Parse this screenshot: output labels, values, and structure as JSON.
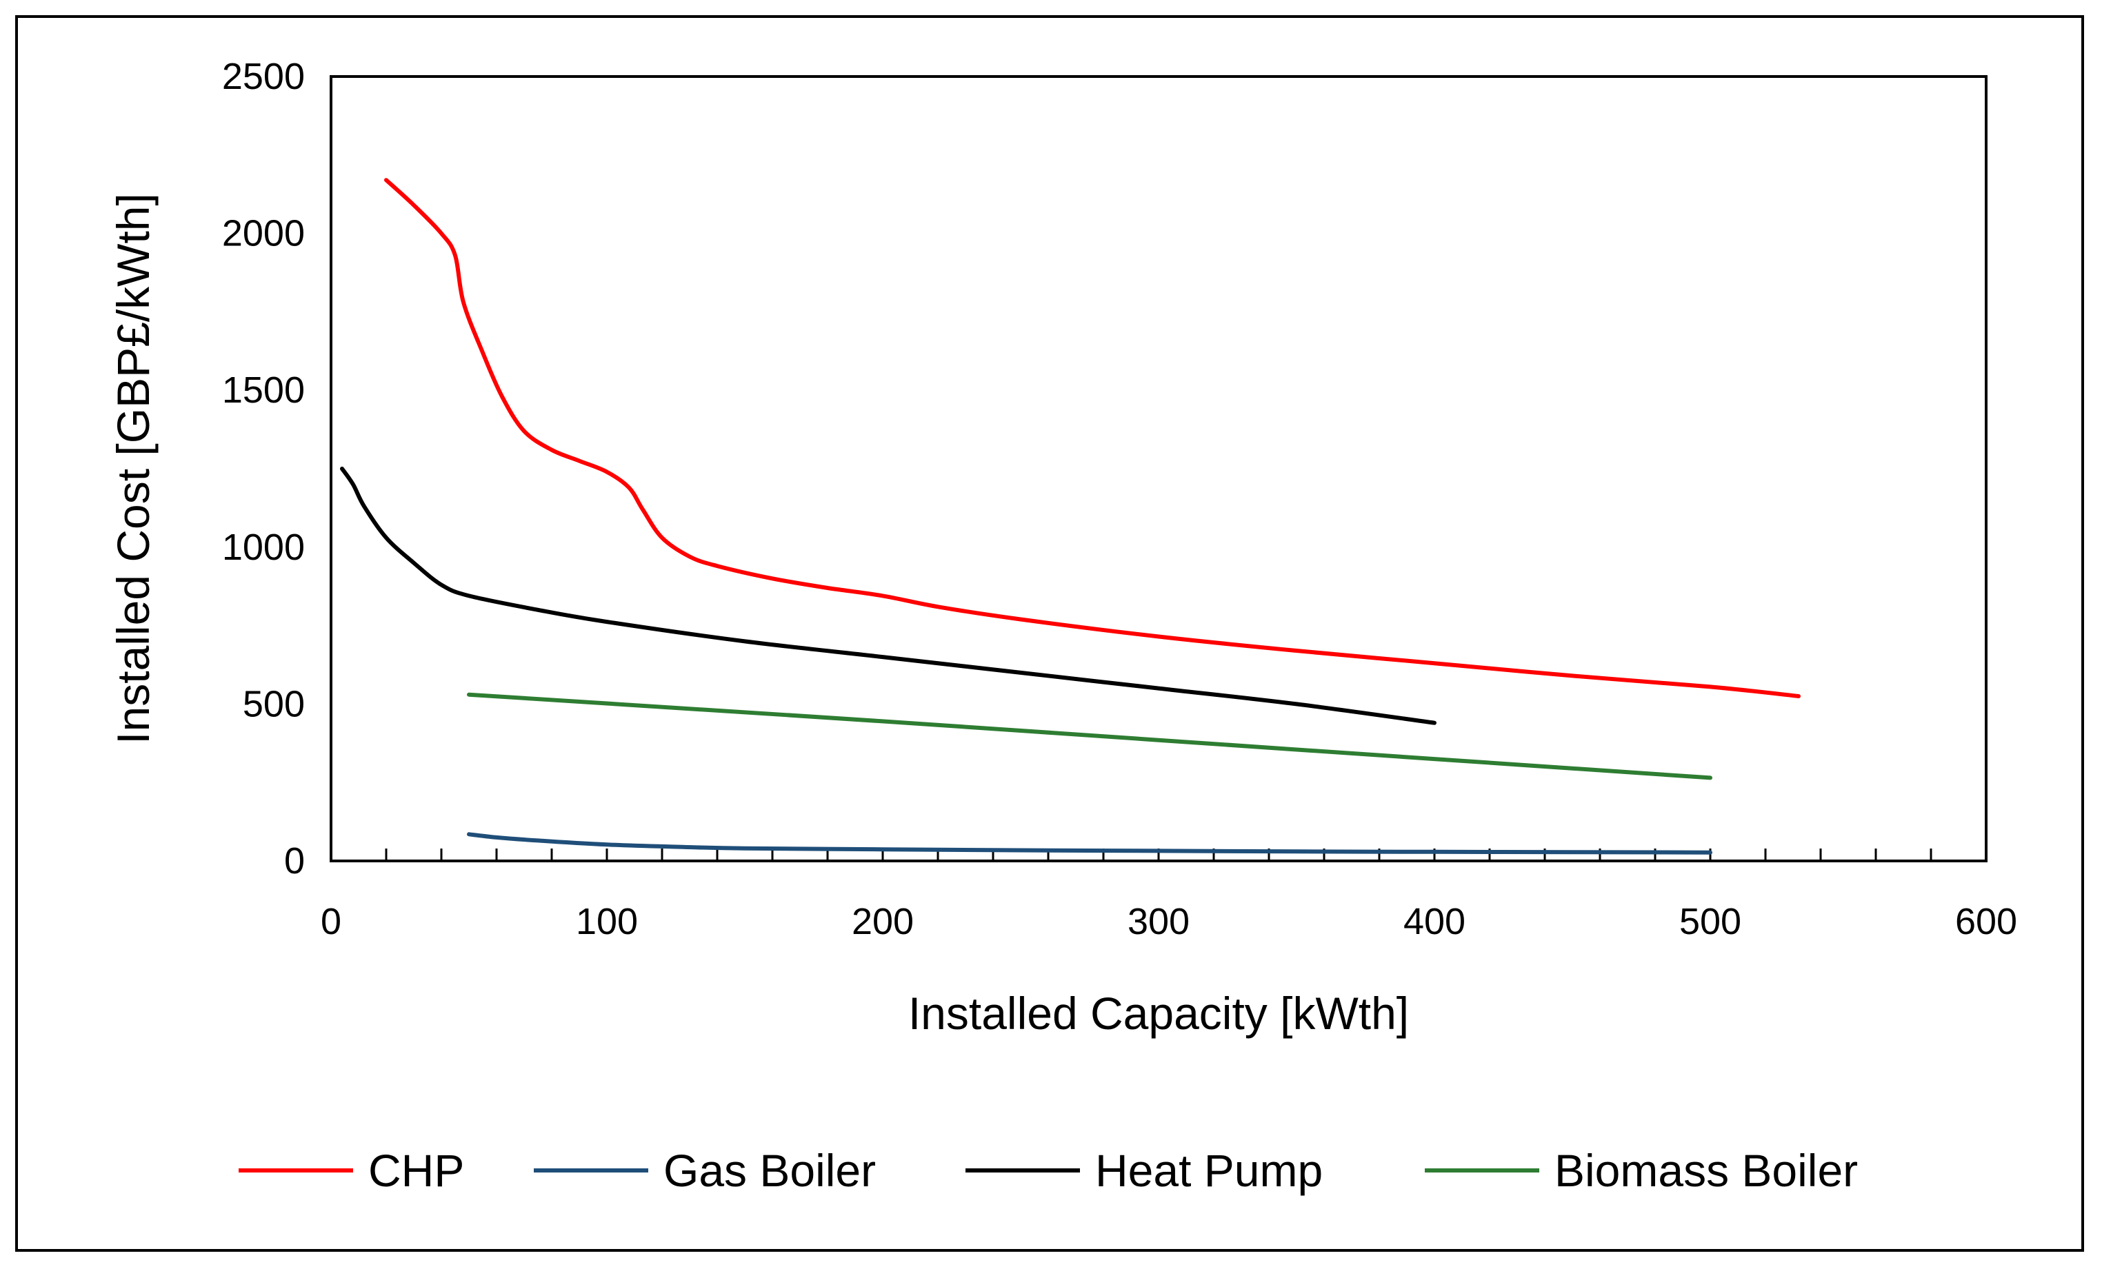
{
  "chart_data": {
    "type": "line",
    "title": "",
    "xlabel": "Installed Capacity [kWth]",
    "ylabel": "Installed Cost [GBP£/kWth]",
    "xlim": [
      0,
      600
    ],
    "ylim": [
      0,
      2500
    ],
    "xticks": [
      0,
      100,
      200,
      300,
      400,
      500,
      600
    ],
    "yticks": [
      0,
      500,
      1000,
      1500,
      2000,
      2500
    ],
    "minor_x_tick_step": 20,
    "grid": false,
    "legend_position": "bottom",
    "series": [
      {
        "name": "CHP",
        "color": "#ff0000",
        "points": [
          [
            20,
            2170
          ],
          [
            30,
            2090
          ],
          [
            40,
            2000
          ],
          [
            45,
            1930
          ],
          [
            48,
            1780
          ],
          [
            55,
            1620
          ],
          [
            62,
            1480
          ],
          [
            70,
            1370
          ],
          [
            80,
            1310
          ],
          [
            90,
            1275
          ],
          [
            100,
            1240
          ],
          [
            108,
            1190
          ],
          [
            113,
            1120
          ],
          [
            120,
            1030
          ],
          [
            130,
            970
          ],
          [
            140,
            940
          ],
          [
            160,
            900
          ],
          [
            180,
            870
          ],
          [
            200,
            845
          ],
          [
            220,
            810
          ],
          [
            250,
            770
          ],
          [
            300,
            715
          ],
          [
            350,
            670
          ],
          [
            400,
            630
          ],
          [
            450,
            590
          ],
          [
            500,
            555
          ],
          [
            532,
            525
          ]
        ]
      },
      {
        "name": "Gas Boiler",
        "color": "#1f4e79",
        "points": [
          [
            50,
            85
          ],
          [
            60,
            75
          ],
          [
            75,
            65
          ],
          [
            100,
            52
          ],
          [
            125,
            45
          ],
          [
            150,
            40
          ],
          [
            200,
            37
          ],
          [
            250,
            34
          ],
          [
            300,
            32
          ],
          [
            350,
            30
          ],
          [
            400,
            29
          ],
          [
            450,
            28
          ],
          [
            500,
            27
          ]
        ]
      },
      {
        "name": "Heat Pump",
        "color": "#000000",
        "points": [
          [
            4,
            1250
          ],
          [
            8,
            1200
          ],
          [
            12,
            1130
          ],
          [
            20,
            1030
          ],
          [
            30,
            950
          ],
          [
            40,
            880
          ],
          [
            50,
            845
          ],
          [
            75,
            800
          ],
          [
            100,
            762
          ],
          [
            150,
            700
          ],
          [
            200,
            650
          ],
          [
            250,
            600
          ],
          [
            300,
            550
          ],
          [
            350,
            500
          ],
          [
            400,
            440
          ]
        ]
      },
      {
        "name": "Biomass Boiler",
        "color": "#2e7d32",
        "points": [
          [
            50,
            530
          ],
          [
            100,
            502
          ],
          [
            200,
            445
          ],
          [
            300,
            385
          ],
          [
            400,
            325
          ],
          [
            500,
            265
          ]
        ]
      }
    ]
  }
}
